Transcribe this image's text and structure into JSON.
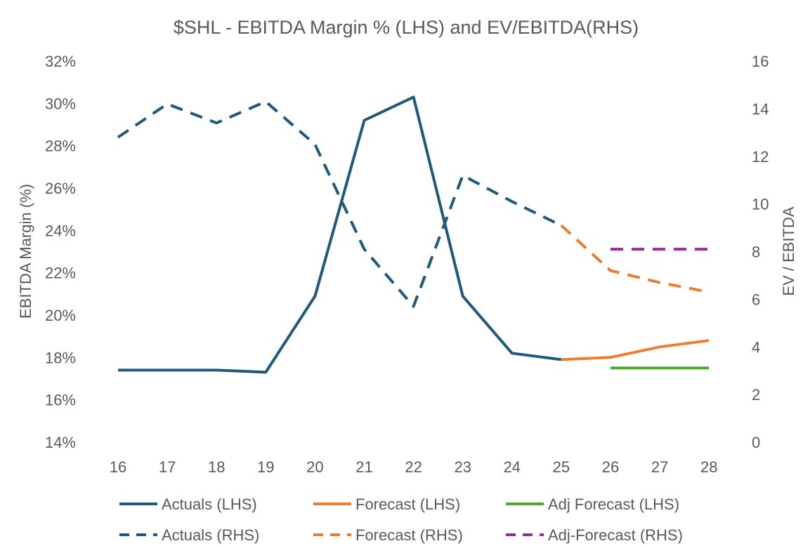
{
  "chart_data": {
    "type": "line",
    "title": "$SHL  - EBITDA Margin % (LHS) and EV/EBITDA(RHS)",
    "ylabel": "EBITDA Margin (%)",
    "y2label": "EV / EBITDA",
    "categories": [
      "16",
      "17",
      "18",
      "19",
      "20",
      "21",
      "22",
      "23",
      "24",
      "25",
      "26",
      "27",
      "28"
    ],
    "ylim": [
      14,
      32
    ],
    "yticks": [
      "14%",
      "16%",
      "18%",
      "20%",
      "22%",
      "24%",
      "26%",
      "28%",
      "30%",
      "32%"
    ],
    "y2lim": [
      0,
      16
    ],
    "y2ticks": [
      "0",
      "2",
      "4",
      "6",
      "8",
      "10",
      "12",
      "14",
      "16"
    ],
    "grid": false,
    "legend_position": "bottom",
    "series": [
      {
        "name": "Actuals (LHS)",
        "axis": "left",
        "style": "solid",
        "color": "#1f5a7a",
        "values": [
          17.4,
          17.4,
          17.4,
          17.3,
          20.9,
          29.2,
          30.3,
          20.9,
          18.2,
          17.9,
          null,
          null,
          null
        ]
      },
      {
        "name": "Forecast (LHS)",
        "axis": "left",
        "style": "solid",
        "color": "#ed7d31",
        "values": [
          null,
          null,
          null,
          null,
          null,
          null,
          null,
          null,
          null,
          17.9,
          18.0,
          18.5,
          18.8
        ]
      },
      {
        "name": "Adj Forecast (LHS)",
        "axis": "left",
        "style": "solid",
        "color": "#4ea72e",
        "values": [
          null,
          null,
          null,
          null,
          null,
          null,
          null,
          null,
          null,
          null,
          17.5,
          17.5,
          17.5
        ]
      },
      {
        "name": "Actuals (RHS)",
        "axis": "right",
        "style": "dashed",
        "color": "#1f5a7a",
        "values": [
          12.8,
          14.2,
          13.4,
          14.3,
          12.5,
          8.1,
          5.7,
          11.2,
          10.1,
          9.1,
          null,
          null,
          null
        ]
      },
      {
        "name": "Forecast (RHS)",
        "axis": "right",
        "style": "dashed",
        "color": "#ed7d31",
        "values": [
          null,
          null,
          null,
          null,
          null,
          null,
          null,
          null,
          null,
          9.1,
          7.2,
          6.7,
          6.3
        ]
      },
      {
        "name": "Adj-Forecast (RHS)",
        "axis": "right",
        "style": "dashed",
        "color": "#9b2b9b",
        "values": [
          null,
          null,
          null,
          null,
          null,
          null,
          null,
          null,
          null,
          null,
          8.1,
          8.1,
          8.1
        ]
      }
    ]
  }
}
